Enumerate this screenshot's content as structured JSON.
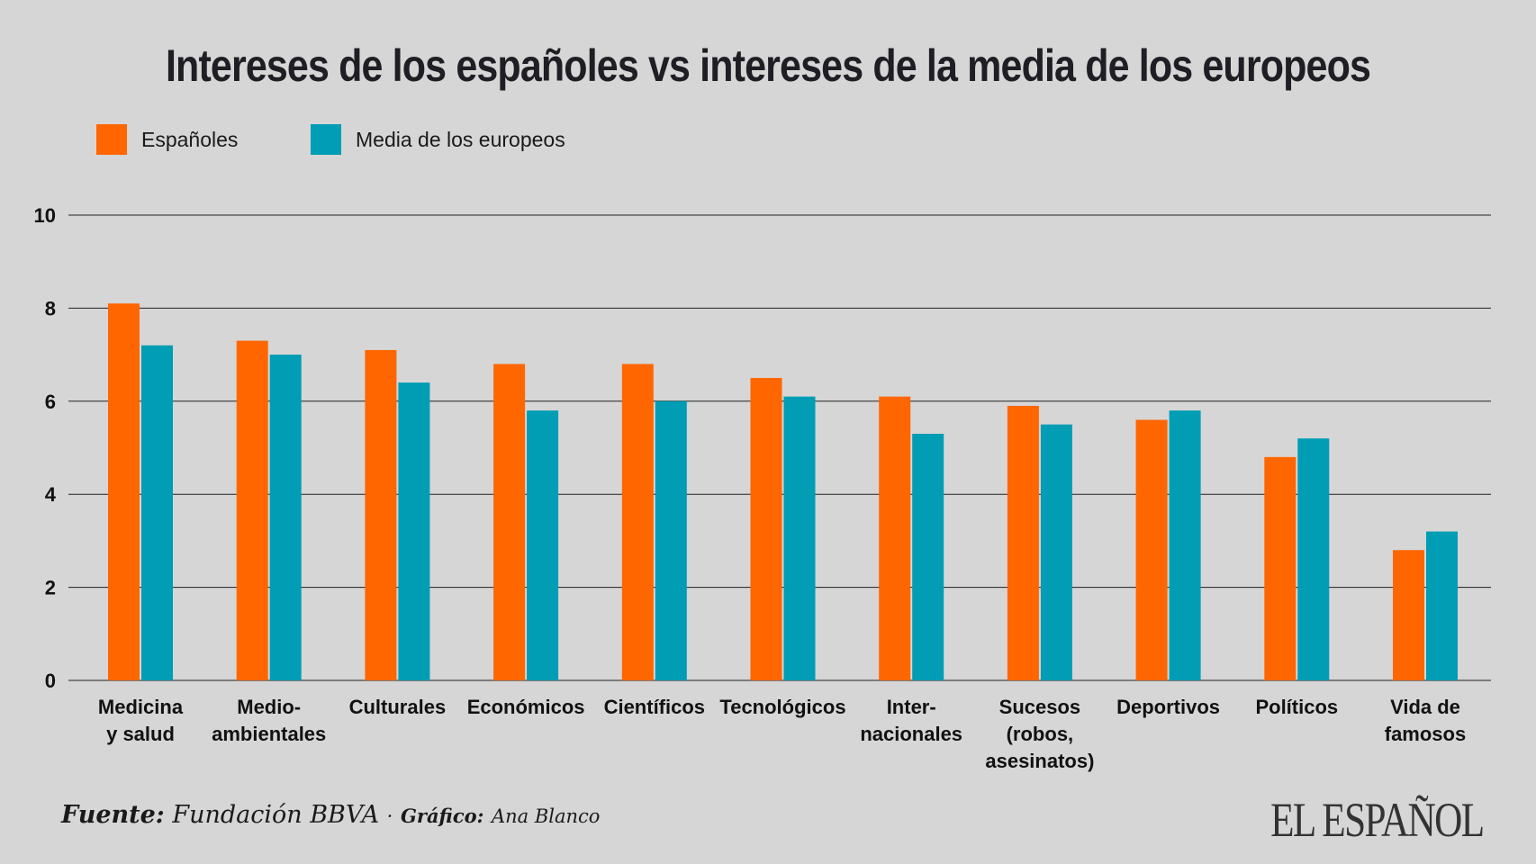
{
  "chart_data": {
    "type": "bar",
    "title": "Intereses de los españoles vs intereses de la media de los europeos",
    "categories": [
      [
        "Medicina",
        "y salud"
      ],
      [
        "Medio-",
        "ambientales"
      ],
      [
        "Culturales"
      ],
      [
        "Económicos"
      ],
      [
        "Científicos"
      ],
      [
        "Tecnológicos"
      ],
      [
        "Inter-",
        "nacionales"
      ],
      [
        "Sucesos",
        "(robos,",
        "asesinatos)"
      ],
      [
        "Deportivos"
      ],
      [
        "Políticos"
      ],
      [
        "Vida de",
        "famosos"
      ]
    ],
    "series": [
      {
        "name": "Españoles",
        "color": "#ff6600",
        "values": [
          8.1,
          7.3,
          7.1,
          6.8,
          6.8,
          6.5,
          6.1,
          5.9,
          5.6,
          4.8,
          2.8
        ]
      },
      {
        "name": "Media de los europeos",
        "color": "#009db5",
        "values": [
          7.2,
          7.0,
          6.4,
          5.8,
          6.0,
          6.1,
          5.3,
          5.5,
          5.8,
          5.2,
          3.2
        ]
      }
    ],
    "ylim": [
      0,
      10
    ],
    "yticks": [
      0,
      2,
      4,
      6,
      8,
      10
    ],
    "grid": true,
    "legend": "top-left"
  },
  "footer": {
    "source_label": "Fuente:",
    "source": "Fundación BBVA",
    "separator": "·",
    "graphic_label": "Gráfico:",
    "graphic": "Ana Blanco"
  },
  "logo": "EL ESPAÑOL"
}
